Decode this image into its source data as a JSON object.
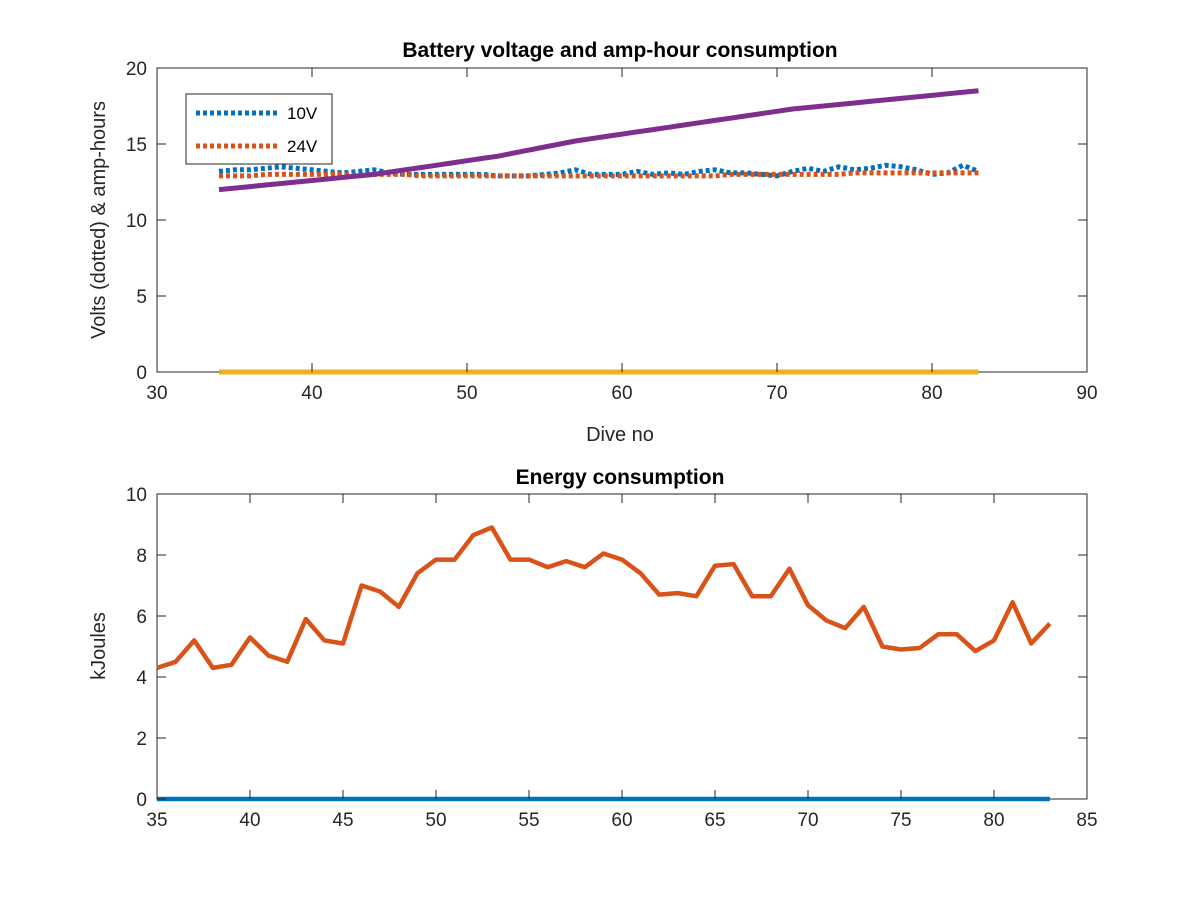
{
  "chart_data": [
    {
      "type": "line",
      "title": "Battery voltage and amp-hour consumption",
      "xlabel": "Dive no",
      "ylabel": "Volts (dotted) & amp-hours",
      "xlim": [
        30,
        90
      ],
      "ylim": [
        0,
        20
      ],
      "xticks": [
        "30",
        "40",
        "50",
        "60",
        "70",
        "80",
        "90"
      ],
      "yticks": [
        "0",
        "5",
        "10",
        "15",
        "20"
      ],
      "grid": false,
      "legend": "top-left",
      "x": [
        34,
        35,
        36,
        37,
        38,
        39,
        40,
        41,
        42,
        43,
        44,
        45,
        46,
        47,
        48,
        49,
        50,
        51,
        52,
        53,
        54,
        55,
        56,
        57,
        58,
        59,
        60,
        61,
        62,
        63,
        64,
        65,
        66,
        67,
        68,
        69,
        70,
        71,
        72,
        73,
        74,
        75,
        76,
        77,
        78,
        79,
        80,
        81,
        82,
        83
      ],
      "series": [
        {
          "name": "10V",
          "color": "#0072BD",
          "style": "dotted",
          "values": [
            13.2,
            13.3,
            13.3,
            13.4,
            13.5,
            13.4,
            13.3,
            13.2,
            13.1,
            13.2,
            13.3,
            13.1,
            13.0,
            13.0,
            13.0,
            13.0,
            13.0,
            13.0,
            12.9,
            12.9,
            12.9,
            13.0,
            13.1,
            13.3,
            13.0,
            13.0,
            13.0,
            13.2,
            13.0,
            13.1,
            13.0,
            13.2,
            13.3,
            13.1,
            13.1,
            13.0,
            12.9,
            13.2,
            13.4,
            13.2,
            13.5,
            13.3,
            13.4,
            13.6,
            13.5,
            13.3,
            13.0,
            13.1,
            13.6,
            13.2
          ]
        },
        {
          "name": "24V",
          "color": "#D95319",
          "style": "dotted",
          "values": [
            12.9,
            12.9,
            12.9,
            13.0,
            13.0,
            13.0,
            13.0,
            13.0,
            13.0,
            12.9,
            13.0,
            13.0,
            13.0,
            12.9,
            12.9,
            12.9,
            12.9,
            12.9,
            12.9,
            12.9,
            12.9,
            12.9,
            12.9,
            12.9,
            12.9,
            12.9,
            12.9,
            12.9,
            12.9,
            12.9,
            12.9,
            12.9,
            12.9,
            13.0,
            13.0,
            13.0,
            13.0,
            13.0,
            13.0,
            13.0,
            13.0,
            13.1,
            13.1,
            13.1,
            13.1,
            13.1,
            13.1,
            13.1,
            13.1,
            13.1
          ]
        },
        {
          "color": "#EDB120",
          "style": "solid",
          "values": [
            0,
            0,
            0,
            0,
            0,
            0,
            0,
            0,
            0,
            0,
            0,
            0,
            0,
            0,
            0,
            0,
            0,
            0,
            0,
            0,
            0,
            0,
            0,
            0,
            0,
            0,
            0,
            0,
            0,
            0,
            0,
            0,
            0,
            0,
            0,
            0,
            0,
            0,
            0,
            0,
            0,
            0,
            0,
            0,
            0,
            0,
            0,
            0,
            0,
            0
          ]
        },
        {
          "color": "#7E2F8E",
          "style": "solid",
          "values": [
            12.0,
            12.1,
            12.2,
            12.3,
            12.4,
            12.5,
            12.6,
            12.7,
            12.8,
            12.9,
            13.0,
            13.15,
            13.3,
            13.45,
            13.6,
            13.75,
            13.9,
            14.05,
            14.2,
            14.4,
            14.6,
            14.8,
            15.0,
            15.2,
            15.35,
            15.5,
            15.65,
            15.8,
            15.95,
            16.1,
            16.25,
            16.4,
            16.55,
            16.7,
            16.85,
            17.0,
            17.15,
            17.3,
            17.4,
            17.5,
            17.6,
            17.7,
            17.8,
            17.9,
            18.0,
            18.1,
            18.2,
            18.3,
            18.4,
            18.5
          ]
        }
      ]
    },
    {
      "type": "line",
      "title": "Energy consumption",
      "xlabel": "",
      "ylabel": "kJoules",
      "xlim": [
        35,
        85
      ],
      "ylim": [
        0,
        10
      ],
      "xticks": [
        "35",
        "40",
        "45",
        "50",
        "55",
        "60",
        "65",
        "70",
        "75",
        "80",
        "85"
      ],
      "yticks": [
        "0",
        "2",
        "4",
        "6",
        "8",
        "10"
      ],
      "grid": false,
      "x": [
        35,
        36,
        37,
        38,
        39,
        40,
        41,
        42,
        43,
        44,
        45,
        46,
        47,
        48,
        49,
        50,
        51,
        52,
        53,
        54,
        55,
        56,
        57,
        58,
        59,
        60,
        61,
        62,
        63,
        64,
        65,
        66,
        67,
        68,
        69,
        70,
        71,
        72,
        73,
        74,
        75,
        76,
        77,
        78,
        79,
        80,
        81,
        82,
        83
      ],
      "series": [
        {
          "color": "#D95319",
          "style": "solid",
          "values": [
            4.3,
            4.5,
            5.2,
            4.3,
            4.4,
            5.3,
            4.7,
            4.5,
            5.9,
            5.2,
            5.1,
            7.0,
            6.8,
            6.3,
            7.4,
            7.85,
            7.85,
            8.65,
            8.9,
            7.85,
            7.85,
            7.6,
            7.8,
            7.6,
            8.05,
            7.85,
            7.4,
            6.7,
            6.75,
            6.65,
            7.65,
            7.7,
            6.65,
            6.65,
            7.55,
            6.35,
            5.85,
            5.6,
            6.3,
            5.0,
            4.9,
            4.95,
            5.4,
            5.4,
            4.85,
            5.2,
            6.45,
            5.1,
            5.75
          ]
        },
        {
          "color": "#0072BD",
          "style": "solid",
          "values": [
            0,
            0,
            0,
            0,
            0,
            0,
            0,
            0,
            0,
            0,
            0,
            0,
            0,
            0,
            0,
            0,
            0,
            0,
            0,
            0,
            0,
            0,
            0,
            0,
            0,
            0,
            0,
            0,
            0,
            0,
            0,
            0,
            0,
            0,
            0,
            0,
            0,
            0,
            0,
            0,
            0,
            0,
            0,
            0,
            0,
            0,
            0,
            0,
            0
          ]
        }
      ]
    }
  ]
}
